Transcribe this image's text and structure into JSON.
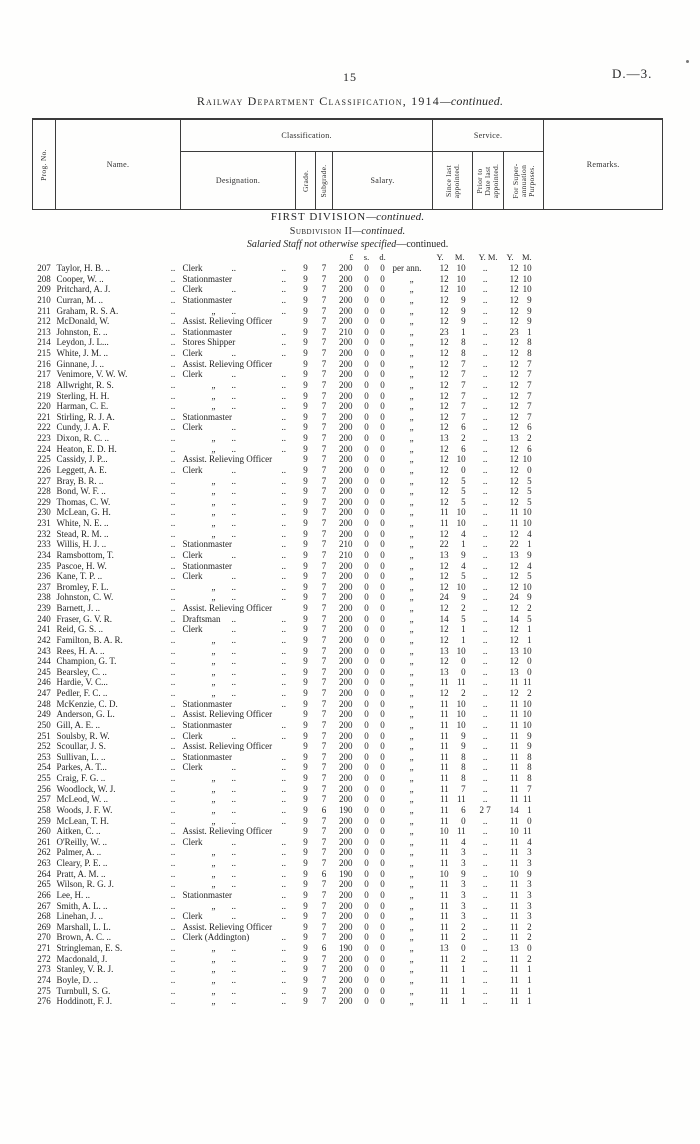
{
  "page": {
    "number": "15",
    "doc_ref": "D.—3.",
    "title": "Railway Department Classification, 1914",
    "title_cont": "—continued."
  },
  "sections": {
    "division": "FIRST DIVISION",
    "division_cont": "—continued.",
    "subdivision": "Subdivision II",
    "subdivision_cont": "—continued.",
    "staff": "Salaried Staff not otherwise specified",
    "staff_cont": "—continued."
  },
  "table": {
    "headers": {
      "prog_no": "Prog. No.",
      "name": "Name.",
      "classification": "Classification.",
      "service": "Service.",
      "designation": "Designation.",
      "grade": "Grade.",
      "subgrade": "Subgrade.",
      "salary": "Salary.",
      "since": [
        "Since last",
        "appointed."
      ],
      "prior": [
        "Prior to",
        "Date last",
        "appointed."
      ],
      "superann": [
        "For Super-",
        "annuation",
        "Purposes."
      ],
      "remarks": "Remarks."
    },
    "units": {
      "pounds": "£",
      "s": "s.",
      "d": "d.",
      "y": "Y.",
      "m": "M.",
      "ym": "Y. M."
    },
    "leader_dots": "..",
    "ditto": "„",
    "rows": [
      [
        "207",
        "Taylor, H. B. ..",
        "Clerk",
        "9",
        "7",
        "200",
        "0",
        "0",
        "per ann.",
        "12",
        "10",
        "..",
        "12",
        "10"
      ],
      [
        "208",
        "Cooper, W. ..",
        "Stationmaster",
        "9",
        "7",
        "200",
        "0",
        "0",
        "„",
        "12",
        "10",
        "..",
        "12",
        "10"
      ],
      [
        "209",
        "Pritchard, A. J.",
        "Clerk",
        "9",
        "7",
        "200",
        "0",
        "0",
        "„",
        "12",
        "10",
        "..",
        "12",
        "10"
      ],
      [
        "210",
        "Curran, M. ..",
        "Stationmaster",
        "9",
        "7",
        "200",
        "0",
        "0",
        "„",
        "12",
        "9",
        "..",
        "12",
        "9"
      ],
      [
        "211",
        "Graham, R. S. A.",
        "„",
        "9",
        "7",
        "200",
        "0",
        "0",
        "„",
        "12",
        "9",
        "..",
        "12",
        "9"
      ],
      [
        "212",
        "McDonald, W.",
        "Assist. Relieving Officer",
        "9",
        "7",
        "200",
        "0",
        "0",
        "„",
        "12",
        "9",
        "..",
        "12",
        "9"
      ],
      [
        "213",
        "Johnston, E. ..",
        "Stationmaster",
        "9",
        "7",
        "210",
        "0",
        "0",
        "„",
        "23",
        "1",
        "..",
        "23",
        "1"
      ],
      [
        "214",
        "Leydon, J. L...",
        "Stores Shipper",
        "9",
        "7",
        "200",
        "0",
        "0",
        "„",
        "12",
        "8",
        "..",
        "12",
        "8"
      ],
      [
        "215",
        "White, J. M. ..",
        "Clerk",
        "9",
        "7",
        "200",
        "0",
        "0",
        "„",
        "12",
        "8",
        "..",
        "12",
        "8"
      ],
      [
        "216",
        "Ginnane, J. ..",
        "Assist. Relieving Officer",
        "9",
        "7",
        "200",
        "0",
        "0",
        "„",
        "12",
        "7",
        "..",
        "12",
        "7"
      ],
      [
        "217",
        "Venimore, V. W. W.",
        "Clerk",
        "9",
        "7",
        "200",
        "0",
        "0",
        "„",
        "12",
        "7",
        "..",
        "12",
        "7"
      ],
      [
        "218",
        "Allwright, R. S.",
        "„",
        "9",
        "7",
        "200",
        "0",
        "0",
        "„",
        "12",
        "7",
        "..",
        "12",
        "7"
      ],
      [
        "219",
        "Sterling, H. H.",
        "„",
        "9",
        "7",
        "200",
        "0",
        "0",
        "„",
        "12",
        "7",
        "..",
        "12",
        "7"
      ],
      [
        "220",
        "Harman, C. E.",
        "„",
        "9",
        "7",
        "200",
        "0",
        "0",
        "„",
        "12",
        "7",
        "..",
        "12",
        "7"
      ],
      [
        "221",
        "Stirling, R. J. A.",
        "Stationmaster",
        "9",
        "7",
        "200",
        "0",
        "0",
        "„",
        "12",
        "7",
        "..",
        "12",
        "7"
      ],
      [
        "222",
        "Cundy, J. A. F.",
        "Clerk",
        "9",
        "7",
        "200",
        "0",
        "0",
        "„",
        "12",
        "6",
        "..",
        "12",
        "6"
      ],
      [
        "223",
        "Dixon, R. C. ..",
        "„",
        "9",
        "7",
        "200",
        "0",
        "0",
        "„",
        "13",
        "2",
        "..",
        "13",
        "2"
      ],
      [
        "224",
        "Heaton, E. D. H.",
        "„",
        "9",
        "7",
        "200",
        "0",
        "0",
        "„",
        "12",
        "6",
        "..",
        "12",
        "6"
      ],
      [
        "225",
        "Cassidy, J. P...",
        "Assist. Relieving Officer",
        "9",
        "7",
        "200",
        "0",
        "0",
        "„",
        "12",
        "10",
        "..",
        "12",
        "10"
      ],
      [
        "226",
        "Leggett, A. E.",
        "Clerk",
        "9",
        "7",
        "200",
        "0",
        "0",
        "„",
        "12",
        "0",
        "..",
        "12",
        "0"
      ],
      [
        "227",
        "Bray, B. R. ..",
        "„",
        "9",
        "7",
        "200",
        "0",
        "0",
        "„",
        "12",
        "5",
        "..",
        "12",
        "5"
      ],
      [
        "228",
        "Bond, W. F. ..",
        "„",
        "9",
        "7",
        "200",
        "0",
        "0",
        "„",
        "12",
        "5",
        "..",
        "12",
        "5"
      ],
      [
        "229",
        "Thomas, C. W.",
        "„",
        "9",
        "7",
        "200",
        "0",
        "0",
        "„",
        "12",
        "5",
        "..",
        "12",
        "5"
      ],
      [
        "230",
        "McLean, G. H.",
        "„",
        "9",
        "7",
        "200",
        "0",
        "0",
        "„",
        "11",
        "10",
        "..",
        "11",
        "10"
      ],
      [
        "231",
        "White, N. E. ..",
        "„",
        "9",
        "7",
        "200",
        "0",
        "0",
        "„",
        "11",
        "10",
        "..",
        "11",
        "10"
      ],
      [
        "232",
        "Stead, R. M. ..",
        "„",
        "9",
        "7",
        "200",
        "0",
        "0",
        "„",
        "12",
        "4",
        "..",
        "12",
        "4"
      ],
      [
        "233",
        "Willis, H. J. ..",
        "Stationmaster",
        "9",
        "7",
        "210",
        "0",
        "0",
        "„",
        "22",
        "1",
        "..",
        "22",
        "1"
      ],
      [
        "234",
        "Ramsbottom, T.",
        "Clerk",
        "9",
        "7",
        "210",
        "0",
        "0",
        "„",
        "13",
        "9",
        "..",
        "13",
        "9"
      ],
      [
        "235",
        "Pascoe, H. W.",
        "Stationmaster",
        "9",
        "7",
        "200",
        "0",
        "0",
        "„",
        "12",
        "4",
        "..",
        "12",
        "4"
      ],
      [
        "236",
        "Kane, T. P. ..",
        "Clerk",
        "9",
        "7",
        "200",
        "0",
        "0",
        "„",
        "12",
        "5",
        "..",
        "12",
        "5"
      ],
      [
        "237",
        "Bromley, F. L.",
        "„",
        "9",
        "7",
        "200",
        "0",
        "0",
        "„",
        "12",
        "10",
        "..",
        "12",
        "10"
      ],
      [
        "238",
        "Johnston, C. W.",
        "„",
        "9",
        "7",
        "200",
        "0",
        "0",
        "„",
        "24",
        "9",
        "..",
        "24",
        "9"
      ],
      [
        "239",
        "Barnett, J. ..",
        "Assist. Relieving Officer",
        "9",
        "7",
        "200",
        "0",
        "0",
        "„",
        "12",
        "2",
        "..",
        "12",
        "2"
      ],
      [
        "240",
        "Fraser, G. V. R.",
        "Draftsman",
        "9",
        "7",
        "200",
        "0",
        "0",
        "„",
        "14",
        "5",
        "..",
        "14",
        "5"
      ],
      [
        "241",
        "Reid, G. S. ..",
        "Clerk",
        "9",
        "7",
        "200",
        "0",
        "0",
        "„",
        "12",
        "1",
        "..",
        "12",
        "1"
      ],
      [
        "242",
        "Familton, B. A. R.",
        "„",
        "9",
        "7",
        "200",
        "0",
        "0",
        "„",
        "12",
        "1",
        "..",
        "12",
        "1"
      ],
      [
        "243",
        "Rees, H. A. ..",
        "„",
        "9",
        "7",
        "200",
        "0",
        "0",
        "„",
        "13",
        "10",
        "..",
        "13",
        "10"
      ],
      [
        "244",
        "Champion, G. T.",
        "„",
        "9",
        "7",
        "200",
        "0",
        "0",
        "„",
        "12",
        "0",
        "..",
        "12",
        "0"
      ],
      [
        "245",
        "Bearsley, C. ..",
        "„",
        "9",
        "7",
        "200",
        "0",
        "0",
        "„",
        "13",
        "0",
        "..",
        "13",
        "0"
      ],
      [
        "246",
        "Hardie, V. C...",
        "„",
        "9",
        "7",
        "200",
        "0",
        "0",
        "„",
        "11",
        "11",
        "..",
        "11",
        "11"
      ],
      [
        "247",
        "Pedler, F. C. ..",
        "„",
        "9",
        "7",
        "200",
        "0",
        "0",
        "„",
        "12",
        "2",
        "..",
        "12",
        "2"
      ],
      [
        "248",
        "McKenzie, C. D.",
        "Stationmaster",
        "9",
        "7",
        "200",
        "0",
        "0",
        "„",
        "11",
        "10",
        "..",
        "11",
        "10"
      ],
      [
        "249",
        "Anderson, G. L.",
        "Assist. Relieving Officer",
        "9",
        "7",
        "200",
        "0",
        "0",
        "„",
        "11",
        "10",
        "..",
        "11",
        "10"
      ],
      [
        "250",
        "Gill, A. E. ..",
        "Stationmaster",
        "9",
        "7",
        "200",
        "0",
        "0",
        "„",
        "11",
        "10",
        "..",
        "11",
        "10"
      ],
      [
        "251",
        "Soulsby, R. W.",
        "Clerk",
        "9",
        "7",
        "200",
        "0",
        "0",
        "„",
        "11",
        "9",
        "..",
        "11",
        "9"
      ],
      [
        "252",
        "Scoullar, J. S.",
        "Assist. Relieving Officer",
        "9",
        "7",
        "200",
        "0",
        "0",
        "„",
        "11",
        "9",
        "..",
        "11",
        "9"
      ],
      [
        "253",
        "Sullivan, L. ..",
        "Stationmaster",
        "9",
        "7",
        "200",
        "0",
        "0",
        "„",
        "11",
        "8",
        "..",
        "11",
        "8"
      ],
      [
        "254",
        "Parkes, A. T...",
        "Clerk",
        "9",
        "7",
        "200",
        "0",
        "0",
        "„",
        "11",
        "8",
        "..",
        "11",
        "8"
      ],
      [
        "255",
        "Craig, F. G. ..",
        "„",
        "9",
        "7",
        "200",
        "0",
        "0",
        "„",
        "11",
        "8",
        "..",
        "11",
        "8"
      ],
      [
        "256",
        "Woodlock, W. J.",
        "„",
        "9",
        "7",
        "200",
        "0",
        "0",
        "„",
        "11",
        "7",
        "..",
        "11",
        "7"
      ],
      [
        "257",
        "McLeod, W. ..",
        "„",
        "9",
        "7",
        "200",
        "0",
        "0",
        "„",
        "11",
        "11",
        "..",
        "11",
        "11"
      ],
      [
        "258",
        "Woods, J. F. W.",
        "„",
        "9",
        "6",
        "190",
        "0",
        "0",
        "„",
        "11",
        "6",
        "2 7",
        "14",
        "1"
      ],
      [
        "259",
        "McLean, T. H.",
        "„",
        "9",
        "7",
        "200",
        "0",
        "0",
        "„",
        "11",
        "0",
        "..",
        "11",
        "0"
      ],
      [
        "260",
        "Aitken, C. ..",
        "Assist. Relieving Officer",
        "9",
        "7",
        "200",
        "0",
        "0",
        "„",
        "10",
        "11",
        "..",
        "10",
        "11"
      ],
      [
        "261",
        "O'Reilly, W. ..",
        "Clerk",
        "9",
        "7",
        "200",
        "0",
        "0",
        "„",
        "11",
        "4",
        "..",
        "11",
        "4"
      ],
      [
        "262",
        "Palmer, A. ..",
        "„",
        "9",
        "7",
        "200",
        "0",
        "0",
        "„",
        "11",
        "3",
        "..",
        "11",
        "3"
      ],
      [
        "263",
        "Cleary, P. E. ..",
        "„",
        "9",
        "7",
        "200",
        "0",
        "0",
        "„",
        "11",
        "3",
        "..",
        "11",
        "3"
      ],
      [
        "264",
        "Pratt, A. M. ..",
        "„",
        "9",
        "6",
        "190",
        "0",
        "0",
        "„",
        "10",
        "9",
        "..",
        "10",
        "9"
      ],
      [
        "265",
        "Wilson, R. G. J.",
        "„",
        "9",
        "7",
        "200",
        "0",
        "0",
        "„",
        "11",
        "3",
        "..",
        "11",
        "3"
      ],
      [
        "266",
        "Lee, H. ..",
        "Stationmaster",
        "9",
        "7",
        "200",
        "0",
        "0",
        "„",
        "11",
        "3",
        "..",
        "11",
        "3"
      ],
      [
        "267",
        "Smith, A. L. ..",
        "„",
        "9",
        "7",
        "200",
        "0",
        "0",
        "„",
        "11",
        "3",
        "..",
        "11",
        "3"
      ],
      [
        "268",
        "Linehan, J. ..",
        "Clerk",
        "9",
        "7",
        "200",
        "0",
        "0",
        "„",
        "11",
        "3",
        "..",
        "11",
        "3"
      ],
      [
        "269",
        "Marshall, L. L.",
        "Assist. Relieving Officer",
        "9",
        "7",
        "200",
        "0",
        "0",
        "„",
        "11",
        "2",
        "..",
        "11",
        "2"
      ],
      [
        "270",
        "Brown, A. C. ..",
        "Clerk (Addington)",
        "9",
        "7",
        "200",
        "0",
        "0",
        "„",
        "11",
        "2",
        "..",
        "11",
        "2"
      ],
      [
        "271",
        "Stringleman, E. S.",
        "„",
        "9",
        "6",
        "190",
        "0",
        "0",
        "„",
        "13",
        "0",
        "..",
        "13",
        "0"
      ],
      [
        "272",
        "Macdonald, J.",
        "„",
        "9",
        "7",
        "200",
        "0",
        "0",
        "„",
        "11",
        "2",
        "..",
        "11",
        "2"
      ],
      [
        "273",
        "Stanley, V. R. J.",
        "„",
        "9",
        "7",
        "200",
        "0",
        "0",
        "„",
        "11",
        "1",
        "..",
        "11",
        "1"
      ],
      [
        "274",
        "Boyle, D. ..",
        "„",
        "9",
        "7",
        "200",
        "0",
        "0",
        "„",
        "11",
        "1",
        "..",
        "11",
        "1"
      ],
      [
        "275",
        "Turnbull, S. G.",
        "„",
        "9",
        "7",
        "200",
        "0",
        "0",
        "„",
        "11",
        "1",
        "..",
        "11",
        "1"
      ],
      [
        "276",
        "Hoddinott, F. J.",
        "„",
        "9",
        "7",
        "200",
        "0",
        "0",
        "„",
        "11",
        "1",
        "..",
        "11",
        "1"
      ]
    ]
  }
}
